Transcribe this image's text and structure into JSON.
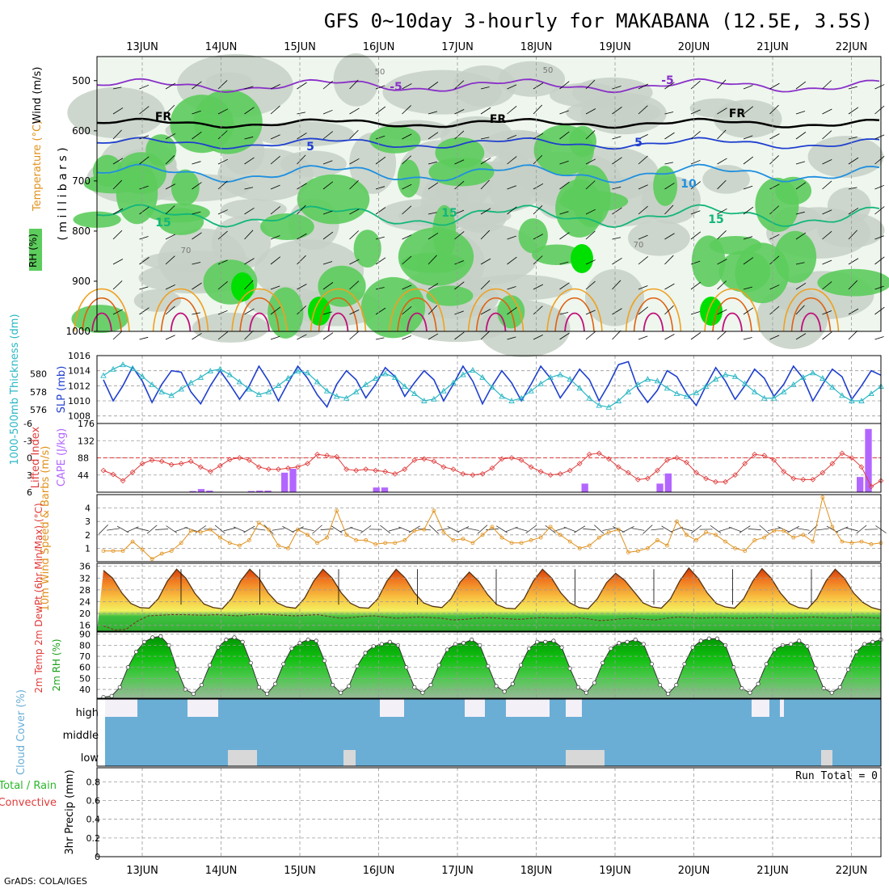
{
  "title": "GFS 0~10day 3-hourly for MAKABANA (12.5E, 3.5S)",
  "footer": "GrADS: COLA/IGES",
  "dates": [
    "13JUN",
    "14JUN",
    "15JUN",
    "16JUN",
    "17JUN",
    "18JUN",
    "19JUN",
    "20JUN",
    "21JUN",
    "22JUN"
  ],
  "colors": {
    "frame": "#000000",
    "grid": "#9a9a9a",
    "rh_dark": "#c6d0c6",
    "rh_green": "#5ccc5c",
    "rh_bright": "#00e000",
    "slp": "#1f3fcf",
    "thickness": "#2ab7c4",
    "lifted": "#e03a3a",
    "cape": "#b266ff",
    "wind": "#e0901a",
    "cloud": "#6aaed6",
    "precip_total": "#2ab72a",
    "precip_conv": "#e03a3a"
  },
  "chart_data": [
    {
      "panel": "upper-air",
      "type": "heatmap",
      "ylabels": [
        "RH (%)",
        "Temperature (°C)",
        "Wind (m/s)"
      ],
      "yaxis_label": "( m i l l i b a r s )",
      "yticks": [
        500,
        600,
        700,
        800,
        900,
        1000
      ],
      "isotherm_labels": [
        "-5",
        "-5",
        "FR",
        "FR",
        "FR",
        "5",
        "5",
        "10",
        "15",
        "15",
        "15"
      ],
      "rh_labels": [
        "50",
        "50",
        "70",
        "70"
      ]
    },
    {
      "panel": "slp-thickness",
      "type": "line",
      "ylabel_left": "1000-500mb Thickness (dm)",
      "ylabel_right": "SLP (mb)",
      "yticks_left": [
        576,
        578,
        580
      ],
      "yticks_right": [
        1008,
        1010,
        1012,
        1014,
        1016
      ],
      "series": [
        {
          "name": "SLP",
          "values": [
            1012.8,
            1010.0,
            1012.0,
            1014.5,
            1012.6,
            1009.8,
            1012.2,
            1014.0,
            1013.8,
            1011.2,
            1009.6,
            1012.0,
            1014.0,
            1012.2,
            1010.2,
            1012.0,
            1014.6,
            1012.6,
            1010.0,
            1012.4,
            1014.6,
            1013.0,
            1010.8,
            1009.2,
            1012.2,
            1014.0,
            1012.8,
            1010.4,
            1012.2,
            1014.4,
            1013.2,
            1010.6,
            1012.4,
            1014.0,
            1012.8,
            1010.0,
            1012.2,
            1014.6,
            1012.6,
            1009.6,
            1012.0,
            1014.0,
            1012.4,
            1010.0,
            1012.2,
            1014.6,
            1013.0,
            1010.4,
            1012.2,
            1014.2,
            1012.8,
            1010.0,
            1012.2,
            1014.8,
            1015.2,
            1011.6,
            1009.8,
            1011.4,
            1014.0,
            1013.2,
            1011.0,
            1009.4,
            1012.0,
            1014.4,
            1012.6,
            1010.2,
            1012.0,
            1014.2,
            1013.0,
            1010.6,
            1012.2,
            1014.6,
            1013.0,
            1010.0,
            1012.2,
            1014.2,
            1013.2,
            1010.2,
            1012.0,
            1014.0,
            1013.4
          ]
        },
        {
          "name": "Thickness",
          "values": [
            579.8,
            580.5,
            581.0,
            580.6,
            579.7,
            578.8,
            578.0,
            577.6,
            578.3,
            579.0,
            579.6,
            580.3,
            580.5,
            579.9,
            579.1,
            578.3,
            577.7,
            578.0,
            578.7,
            579.5,
            580.3,
            580.1,
            579.1,
            578.1,
            577.5,
            577.3,
            578.0,
            578.8,
            579.5,
            580.0,
            579.6,
            578.6,
            577.8,
            577.0,
            577.2,
            578.1,
            579.0,
            579.9,
            580.4,
            579.6,
            578.5,
            577.5,
            577.0,
            577.3,
            578.1,
            578.9,
            579.6,
            579.9,
            579.4,
            578.4,
            577.3,
            576.5,
            576.3,
            577.0,
            578.0,
            578.8,
            579.4,
            579.2,
            578.4,
            577.8,
            577.5,
            577.9,
            578.6,
            579.4,
            579.9,
            579.7,
            578.9,
            578.0,
            577.3,
            577.3,
            578.0,
            578.8,
            579.6,
            580.1,
            579.5,
            578.5,
            577.6,
            577.0,
            577.0,
            577.8,
            578.6
          ]
        }
      ]
    },
    {
      "panel": "li-cape",
      "type": "line",
      "ylabel_left": "Lifted Index",
      "ylabel_right": "CAPE (J/kg)",
      "yticks_left": [
        "-6",
        "-3",
        "0",
        "3",
        "6"
      ],
      "yticks_right": [
        44,
        88,
        132,
        176
      ],
      "series": [
        {
          "name": "Lifted Index",
          "values": [
            2.2,
            2.9,
            4.0,
            2.5,
            1.0,
            0.4,
            0.6,
            1.2,
            1.0,
            0.6,
            1.6,
            2.4,
            1.4,
            0.3,
            0.0,
            0.4,
            1.6,
            2.0,
            2.0,
            1.8,
            1.6,
            1.0,
            -0.6,
            -0.4,
            -0.2,
            2.0,
            2.2,
            2.0,
            2.2,
            2.4,
            2.8,
            2.0,
            0.4,
            0.2,
            0.6,
            1.6,
            2.0,
            2.8,
            3.0,
            2.8,
            1.8,
            0.2,
            0.0,
            0.4,
            1.6,
            2.4,
            3.0,
            2.8,
            2.2,
            1.0,
            -0.6,
            -0.8,
            0.2,
            1.6,
            2.6,
            3.8,
            3.6,
            2.2,
            0.4,
            0.0,
            0.8,
            2.6,
            3.6,
            4.2,
            4.2,
            3.0,
            1.0,
            -0.6,
            -0.4,
            0.4,
            2.4,
            3.6,
            3.8,
            3.8,
            2.6,
            1.0,
            -0.8,
            0.0,
            1.6,
            5.0,
            4.0
          ]
        },
        {
          "name": "CAPE",
          "values": [
            0,
            0,
            0,
            0,
            0,
            0,
            0,
            0,
            0,
            0,
            0,
            3,
            8,
            4,
            0,
            0,
            0,
            0,
            3,
            4,
            4,
            0,
            50,
            60,
            0,
            0,
            0,
            0,
            0,
            0,
            0,
            0,
            0,
            12,
            12,
            0,
            0,
            0,
            0,
            0,
            0,
            0,
            0,
            0,
            0,
            0,
            0,
            0,
            0,
            0,
            0,
            0,
            0,
            0,
            0,
            0,
            0,
            0,
            22,
            0,
            0,
            0,
            0,
            0,
            0,
            0,
            0,
            22,
            48,
            0,
            0,
            0,
            0,
            0,
            0,
            0,
            0,
            0,
            0,
            0,
            0,
            0,
            0,
            0,
            0,
            0,
            0,
            0,
            0,
            0,
            0,
            39,
            162,
            0
          ]
        }
      ]
    },
    {
      "panel": "wind-10m",
      "type": "line",
      "ylabel": "10m Wind Speed & Barbs (m/s)",
      "yticks": [
        1,
        2,
        3,
        4
      ],
      "series": [
        {
          "name": "Wind Speed",
          "values": [
            0.8,
            0.8,
            0.8,
            1.5,
            0.9,
            0.2,
            0.6,
            0.8,
            1.4,
            2.3,
            2.2,
            2.4,
            1.8,
            1.4,
            1.2,
            1.6,
            2.9,
            2.4,
            1.2,
            1.0,
            2.4,
            2.0,
            1.4,
            1.8,
            3.8,
            2.0,
            1.6,
            1.6,
            1.3,
            1.4,
            1.4,
            1.6,
            2.3,
            2.4,
            3.8,
            2.2,
            1.6,
            1.7,
            1.4,
            2.0,
            2.6,
            1.8,
            1.4,
            1.4,
            1.6,
            1.8,
            2.6,
            2.0,
            1.5,
            1.0,
            1.2,
            1.8,
            2.2,
            2.4,
            0.7,
            0.8,
            1.0,
            1.6,
            1.2,
            3.0,
            2.0,
            1.6,
            2.2,
            2.0,
            1.5,
            1.0,
            0.8,
            1.6,
            1.8,
            2.3,
            2.3,
            1.8,
            2.0,
            1.5,
            4.8,
            2.6,
            1.5,
            1.4,
            1.5,
            1.3,
            1.4
          ]
        }
      ]
    },
    {
      "panel": "temperature-2m",
      "type": "area",
      "ylabel": "2m Temp 2m DewPt (6hr Min/Max) (°C)",
      "yticks": [
        16,
        20,
        24,
        28,
        32,
        36
      ],
      "series": [
        {
          "name": "2m Temp",
          "values": [
            34.6,
            32.0,
            27.0,
            23.4,
            22.0,
            21.8,
            25.0,
            31.0,
            35.0,
            32.0,
            26.8,
            23.2,
            22.0,
            21.6,
            25.0,
            31.0,
            35.0,
            32.0,
            27.0,
            23.6,
            22.2,
            21.8,
            25.2,
            31.0,
            35.0,
            32.0,
            27.0,
            23.5,
            22.0,
            21.8,
            25.0,
            31.0,
            35.0,
            32.0,
            27.0,
            23.6,
            22.4,
            22.0,
            25.0,
            30.6,
            34.0,
            31.0,
            26.4,
            23.0,
            21.8,
            21.6,
            25.0,
            31.0,
            35.0,
            32.0,
            27.0,
            23.6,
            22.0,
            21.6,
            25.0,
            30.4,
            33.6,
            31.2,
            27.4,
            23.6,
            22.2,
            21.8,
            25.0,
            31.0,
            35.4,
            32.0,
            27.0,
            23.4,
            22.2,
            21.8,
            25.0,
            31.0,
            35.2,
            32.0,
            27.0,
            23.4,
            22.0,
            21.6,
            25.0,
            31.0,
            35.0,
            32.0,
            27.0,
            23.8,
            22.0,
            21.2
          ]
        },
        {
          "name": "2m DewPt",
          "values": [
            15.8,
            14.4,
            14.6,
            17.4,
            19.2,
            19.4,
            19.6,
            19.6,
            19.5,
            19.4,
            19.6,
            19.4,
            19.2,
            19.6,
            19.8,
            19.6,
            19.4,
            19.2,
            19.4,
            19.6,
            19.0,
            18.4,
            18.6,
            19.0,
            19.2,
            18.8,
            18.4,
            18.6,
            18.8,
            18.6,
            18.4,
            17.8,
            18.0,
            18.4,
            18.6,
            18.4,
            18.2,
            18.0,
            18.4,
            18.6,
            18.4,
            18.4,
            18.6,
            18.2,
            17.6,
            17.8,
            18.2,
            18.4,
            18.0,
            17.8,
            18.4,
            18.8,
            18.6,
            18.4,
            18.6,
            18.6,
            18.4,
            18.4,
            18.6,
            18.6,
            18.4,
            18.4,
            18.6,
            18.8,
            18.6,
            18.4,
            18.6,
            18.8,
            18.6,
            18.4
          ]
        }
      ]
    },
    {
      "panel": "rh-2m",
      "type": "area",
      "ylabel": "2m RH (%)",
      "yticks": [
        40,
        50,
        60,
        70,
        80,
        90
      ],
      "series": [
        {
          "name": "2m RH",
          "values": [
            33,
            34,
            42,
            60,
            74,
            83,
            87,
            88,
            80,
            58,
            40,
            36,
            44,
            62,
            78,
            85,
            87,
            83,
            64,
            42,
            36,
            45,
            63,
            77,
            82,
            85,
            84,
            66,
            44,
            37,
            43,
            61,
            73,
            79,
            81,
            83,
            80,
            60,
            42,
            37,
            44,
            62,
            76,
            81,
            82,
            85,
            80,
            61,
            43,
            38,
            45,
            62,
            77,
            83,
            83,
            84,
            78,
            59,
            42,
            37,
            46,
            64,
            77,
            82,
            83,
            85,
            81,
            63,
            44,
            36,
            44,
            63,
            78,
            84,
            86,
            86,
            80,
            60,
            41,
            37,
            45,
            63,
            76,
            80,
            81,
            84,
            79,
            59,
            41,
            37,
            42,
            58,
            74,
            81,
            83,
            85
          ]
        }
      ]
    },
    {
      "panel": "cloud-cover",
      "type": "bar",
      "ylabel": "Cloud Cover (%)",
      "levels": [
        "high",
        "middle",
        "low"
      ]
    },
    {
      "panel": "precip",
      "type": "bar",
      "ylabel": "3hr Precip (mm)",
      "legend_total": "Total / Rain",
      "legend_convective": "Convective",
      "yticks": [
        0,
        0.2,
        0.4,
        0.6,
        0.8
      ],
      "run_total": "Run Total = 0",
      "values": []
    }
  ]
}
